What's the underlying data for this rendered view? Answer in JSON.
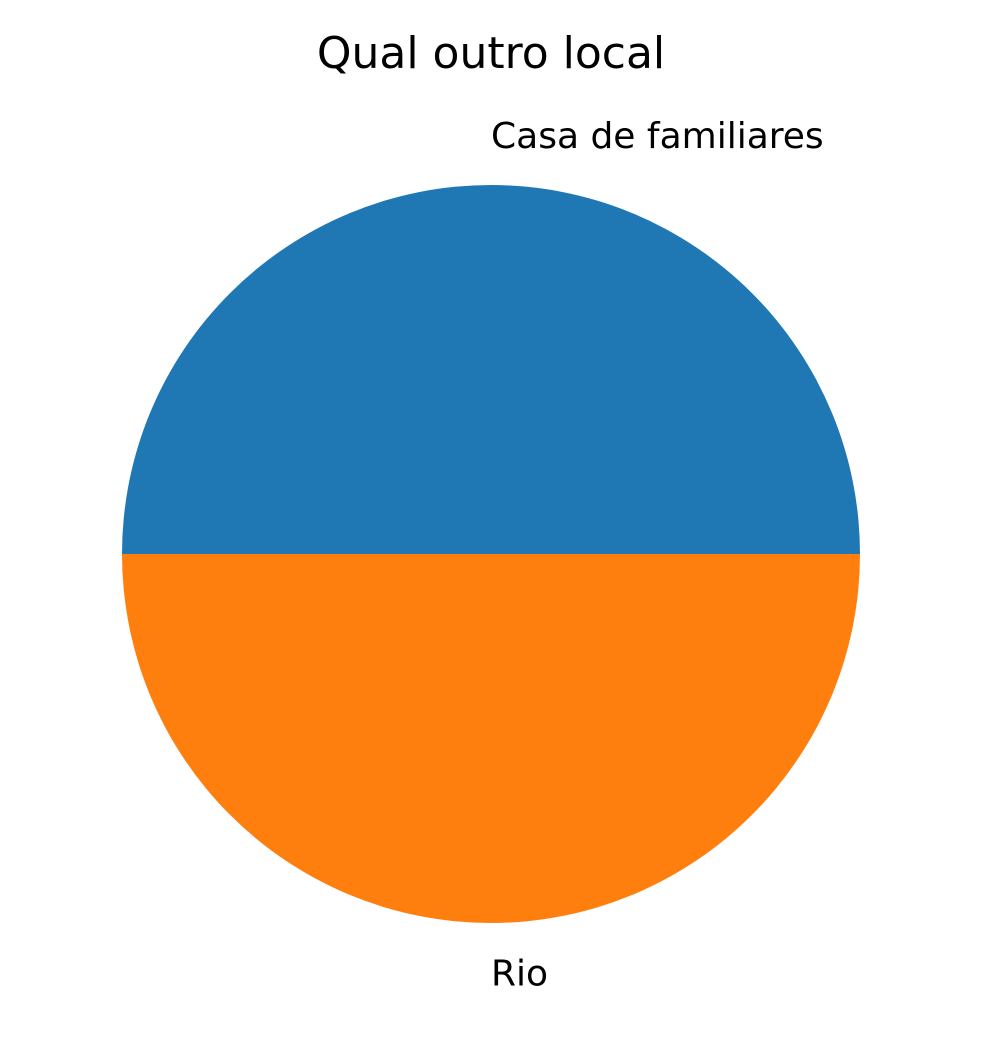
{
  "chart_data": {
    "type": "pie",
    "title": "Qual outro local",
    "labels": [
      "Casa de familiares",
      "Rio"
    ],
    "values": [
      1,
      1
    ],
    "colors": [
      "#1f77b4",
      "#ff7f0e"
    ],
    "start_angle_deg": 0,
    "direction": "counterclockwise"
  }
}
